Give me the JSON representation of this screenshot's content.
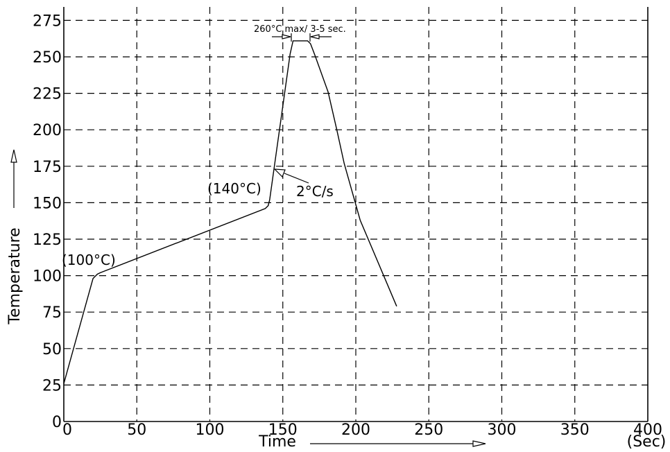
{
  "chart_data": {
    "type": "line",
    "xlabel": "Time",
    "xunit": "(Sec)",
    "ylabel": "Temperature",
    "xlim": [
      0,
      400
    ],
    "ylim": [
      0,
      275
    ],
    "xticks": [
      0,
      50,
      100,
      150,
      200,
      250,
      300,
      350,
      400
    ],
    "yticks": [
      0,
      25,
      50,
      75,
      100,
      125,
      150,
      175,
      200,
      225,
      250,
      275
    ],
    "xtick_labels": [
      "0",
      "50",
      "100",
      "150",
      "200",
      "250",
      "300",
      "350",
      "400"
    ],
    "ytick_labels": [
      "0",
      "25",
      "50",
      "75",
      "100",
      "125",
      "150",
      "175",
      "200",
      "225",
      "250",
      "275"
    ],
    "grid": true,
    "series": [
      {
        "x": [
          0,
          20,
          23,
          25,
          138,
          140,
          141,
          155,
          157,
          160,
          167,
          169,
          172,
          181,
          187,
          192,
          203,
          228
        ],
        "y": [
          26,
          98,
          101,
          102,
          146,
          148,
          152,
          252,
          261,
          261,
          261,
          259,
          251,
          226,
          200,
          177,
          138,
          79
        ]
      }
    ],
    "annotations": {
      "a100": "(100°C)",
      "a140": "(140°C)",
      "rate": "2°C/s",
      "peak": "260°C max/ 3-5 sec."
    }
  }
}
